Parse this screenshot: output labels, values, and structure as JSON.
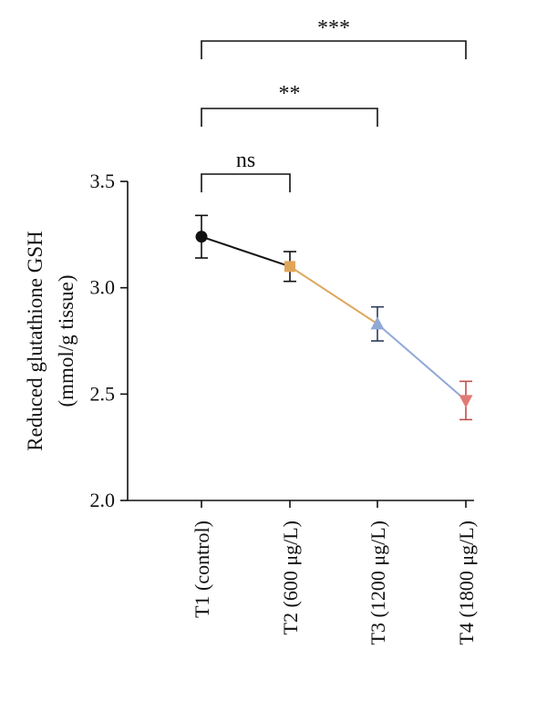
{
  "chart_data": {
    "type": "line",
    "categories": [
      "T1 (control)",
      "T2 (600 μg/L)",
      "T3 (1200 μg/L)",
      "T4 (1800 μg/L)"
    ],
    "series": [
      {
        "values": [
          3.24,
          3.1,
          2.83,
          2.47
        ],
        "errors": [
          0.1,
          0.07,
          0.08,
          0.09
        ],
        "markers": [
          "circle",
          "square",
          "triangle-up",
          "triangle-down"
        ],
        "marker_colors": [
          "#111111",
          "#E0A55A",
          "#8FA8D6",
          "#E07A75"
        ],
        "segment_colors": [
          "#111111",
          "#E0A55A",
          "#8FA8D6"
        ],
        "errorbar_colors": [
          "#111111",
          "#111111",
          "#2B3A5C",
          "#C0504D"
        ]
      }
    ],
    "ylabel_line1": "Reduced glutathione GSH",
    "ylabel_line2": "(mmol/g tissue)",
    "ylim": [
      2.0,
      3.5
    ],
    "yticks": [
      "2.0",
      "2.5",
      "3.0",
      "3.5"
    ],
    "grid": false,
    "significance": [
      {
        "from": 0,
        "to": 1,
        "label": "ns"
      },
      {
        "from": 0,
        "to": 2,
        "label": "**"
      },
      {
        "from": 0,
        "to": 3,
        "label": "***"
      }
    ]
  }
}
